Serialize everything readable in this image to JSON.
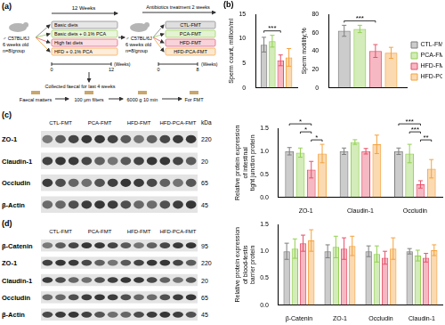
{
  "panel_labels": [
    "(a)",
    "(b)",
    "(c)",
    "(d)"
  ],
  "diagram": {
    "mouse": [
      "♂ C57BL/6J",
      "6 weeks old",
      "n=8/group"
    ],
    "diet_period": "12 Weeks",
    "diets": [
      "Basic diets",
      "Basic diets + 0.1% PCA",
      "High fat diets",
      "HFD + 0.1% PCA"
    ],
    "timeline1": {
      "start": 0,
      "end": 12,
      "unit": "(Weeks)"
    },
    "collect": "Collected faecal for last 4 weeks",
    "antibiotics": "Antibiotics treatment 2 weeks",
    "timeline2": {
      "start": 0,
      "end": 8,
      "unit": "(Weeks)"
    },
    "groups": [
      "CTL-FMT",
      "PCA-FMT",
      "HFD-FMT",
      "HFD-PCA-FMT"
    ],
    "steps": [
      "Faecal matters",
      "100 μm filters",
      "6000 g 10 min",
      "For FMT"
    ]
  },
  "chart_data": [
    {
      "type": "bar",
      "y_label": "Sperm count, million/ml",
      "categories": [
        null
      ],
      "series": [
        {
          "name": "CTL-FMT",
          "color": "#7f7f7f",
          "values": [
            8.8
          ],
          "errors": [
            1.5
          ]
        },
        {
          "name": "PCA-FMT",
          "color": "#92d050",
          "values": [
            9.5
          ],
          "errors": [
            1.2
          ]
        },
        {
          "name": "HFD-FMT",
          "color": "#e8506a",
          "values": [
            5.6
          ],
          "errors": [
            1.1
          ]
        },
        {
          "name": "HFD-PCA-FMT",
          "color": "#f4a23c",
          "values": [
            6.2
          ],
          "errors": [
            1.8
          ]
        }
      ],
      "ylim": [
        0,
        15
      ],
      "yticks": [
        0,
        5,
        10,
        15
      ],
      "grid": false,
      "annotations": [
        {
          "from": "CTL-FMT",
          "to": "HFD-FMT",
          "label": "***"
        }
      ]
    },
    {
      "type": "bar",
      "y_label": "Sperm motility,%",
      "categories": [
        null
      ],
      "series": [
        {
          "name": "CTL-FMT",
          "color": "#7f7f7f",
          "values": [
            62
          ],
          "errors": [
            6
          ]
        },
        {
          "name": "PCA-FMT",
          "color": "#92d050",
          "values": [
            64
          ],
          "errors": [
            4
          ]
        },
        {
          "name": "HFD-FMT",
          "color": "#e8506a",
          "values": [
            40
          ],
          "errors": [
            7
          ]
        },
        {
          "name": "HFD-PCA-FMT",
          "color": "#f4a23c",
          "values": [
            38
          ],
          "errors": [
            6
          ]
        }
      ],
      "ylim": [
        0,
        80
      ],
      "yticks": [
        0,
        20,
        40,
        60,
        80
      ],
      "grid": false,
      "legend": "right",
      "annotations": [
        {
          "from": "CTL-FMT",
          "to": "HFD-FMT",
          "label": "***"
        }
      ]
    },
    {
      "type": "bar",
      "y_label": [
        "Relative protein expression",
        "of intestinal",
        "tight junction protein"
      ],
      "categories": [
        "ZO-1",
        "Claudin-1",
        "Occludin"
      ],
      "series": [
        {
          "name": "CTL-FMT",
          "color": "#7f7f7f",
          "values": [
            1.0,
            1.0,
            1.0
          ],
          "errors": [
            0.08,
            0.07,
            0.07
          ]
        },
        {
          "name": "PCA-FMT",
          "color": "#92d050",
          "values": [
            0.97,
            1.2,
            0.95
          ],
          "errors": [
            0.1,
            0.05,
            0.2
          ]
        },
        {
          "name": "HFD-FMT",
          "color": "#e8506a",
          "values": [
            0.6,
            1.0,
            0.28
          ],
          "errors": [
            0.18,
            0.06,
            0.08
          ]
        },
        {
          "name": "HFD-PCA-FMT",
          "color": "#f4a23c",
          "values": [
            0.95,
            1.15,
            0.62
          ],
          "errors": [
            0.2,
            0.2,
            0.2
          ]
        }
      ],
      "ylim": [
        0,
        1.5
      ],
      "yticks": [
        {
          "value": 0,
          "label": "0.0"
        },
        {
          "value": 0.5,
          "label": "0.5"
        },
        {
          "value": 1,
          "label": "1.0"
        },
        {
          "value": 1.5,
          "label": "1.5"
        }
      ],
      "grid": false,
      "annotations": [
        {
          "category": "ZO-1",
          "from": "HFD-FMT",
          "to": "HFD-PCA-FMT",
          "label": "*"
        },
        {
          "category": "ZO-1",
          "from": "PCA-FMT",
          "to": "HFD-FMT",
          "label": "*"
        },
        {
          "category": "ZO-1",
          "from": "CTL-FMT",
          "to": "HFD-FMT",
          "label": "*"
        },
        {
          "category": "Occludin",
          "from": "HFD-FMT",
          "to": "HFD-PCA-FMT",
          "label": "**"
        },
        {
          "category": "Occludin",
          "from": "PCA-FMT",
          "to": "HFD-FMT",
          "label": "***"
        },
        {
          "category": "Occludin",
          "from": "CTL-FMT",
          "to": "HFD-FMT",
          "label": "***"
        }
      ]
    },
    {
      "type": "bar",
      "y_label": [
        "Relative protein expression",
        "of blood-testis",
        "barrier protein"
      ],
      "categories": [
        "β-Catenin",
        "ZO-1",
        "Occludin",
        "Claudin-1"
      ],
      "series": [
        {
          "name": "CTL-FMT",
          "color": "#7f7f7f",
          "values": [
            1.0,
            1.0,
            1.0,
            1.0
          ],
          "errors": [
            0.15,
            0.12,
            0.1,
            0.05
          ]
        },
        {
          "name": "PCA-FMT",
          "color": "#92d050",
          "values": [
            1.05,
            1.08,
            0.95,
            0.92
          ],
          "errors": [
            0.18,
            0.2,
            0.15,
            0.1
          ]
        },
        {
          "name": "HFD-FMT",
          "color": "#e8506a",
          "values": [
            1.15,
            1.05,
            0.88,
            0.88
          ],
          "errors": [
            0.15,
            0.2,
            0.12,
            0.08
          ]
        },
        {
          "name": "HFD-PCA-FMT",
          "color": "#f4a23c",
          "values": [
            1.2,
            1.1,
            1.05,
            1.02
          ],
          "errors": [
            0.2,
            0.18,
            0.2,
            0.1
          ]
        }
      ],
      "ylim": [
        0,
        1.5
      ],
      "yticks": [
        {
          "value": 0,
          "label": "0.0"
        },
        {
          "value": 0.5,
          "label": "0.5"
        },
        {
          "value": 1,
          "label": "1.0"
        },
        {
          "value": 1.5,
          "label": "1.5"
        }
      ],
      "grid": false
    }
  ],
  "blots": [
    {
      "groups": [
        "CTL-FMT",
        "PCA-FMT",
        "HFD-FMT",
        "HFD-PCA-FMT"
      ],
      "unit": "kDa",
      "rows": [
        {
          "name": "ZO-1",
          "kda": 220
        },
        {
          "name": "Claudin-1",
          "kda": 20
        },
        {
          "name": "Occludin",
          "kda": 65
        },
        {
          "name": "β-Actin",
          "kda": 45
        }
      ]
    },
    {
      "groups": [
        "CTL-FMT",
        "PCA-FMT",
        "HFD-FMT",
        "HFD-PCA-FMT"
      ],
      "rows": [
        {
          "name": "β-Catenin",
          "kda": 95
        },
        {
          "name": "ZO-1",
          "kda": 220
        },
        {
          "name": "Claudin-1",
          "kda": 20
        },
        {
          "name": "Occludin",
          "kda": 65
        },
        {
          "name": "β-Actin",
          "kda": 45
        }
      ]
    }
  ]
}
